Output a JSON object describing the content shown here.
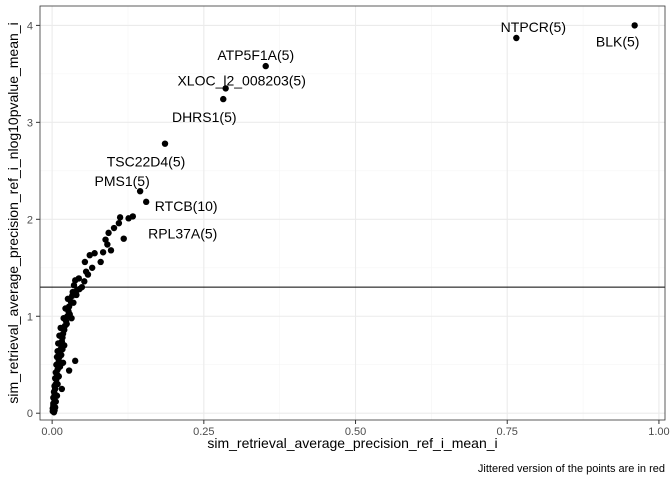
{
  "chart_data": {
    "type": "scatter",
    "xlabel": "sim_retrieval_average_precision_ref_i_mean_i",
    "ylabel": "sim_retrieval_average_precision_ref_i_nlog10pvalue_mean_i",
    "caption": "Jittered version of the points are in red",
    "xlim": [
      -0.02,
      1.01
    ],
    "ylim": [
      -0.07,
      4.2
    ],
    "x_ticks": [
      0.0,
      0.25,
      0.5,
      0.75,
      1.0
    ],
    "x_tick_labels": [
      "0.00",
      "0.25",
      "0.50",
      "0.75",
      "1.00"
    ],
    "y_ticks": [
      0,
      1,
      2,
      3,
      4
    ],
    "y_tick_labels": [
      "0",
      "1",
      "2",
      "3",
      "4"
    ],
    "grid": true,
    "hline": 1.3,
    "point_color": "#000000",
    "labeled_points": [
      {
        "x": 0.96,
        "y": 4.0,
        "label": "BLK(5)"
      },
      {
        "x": 0.765,
        "y": 3.87,
        "label": "NTPCR(5)"
      },
      {
        "x": 0.352,
        "y": 3.58,
        "label": "ATP5F1A(5)"
      },
      {
        "x": 0.286,
        "y": 3.35,
        "label": "XLOC_l2_008203(5)"
      },
      {
        "x": 0.282,
        "y": 3.24,
        "label": "DHRS1(5)"
      },
      {
        "x": 0.186,
        "y": 2.78,
        "label": "TSC22D4(5)"
      },
      {
        "x": 0.145,
        "y": 2.29,
        "label": "PMS1(5)"
      },
      {
        "x": 0.155,
        "y": 2.18,
        "label": "RTCB(10)"
      },
      {
        "x": 0.118,
        "y": 1.8,
        "label": "RPL37A(5)"
      }
    ],
    "points": [
      {
        "x": 0.133,
        "y": 2.03
      },
      {
        "x": 0.126,
        "y": 2.01
      },
      {
        "x": 0.112,
        "y": 2.02
      },
      {
        "x": 0.11,
        "y": 1.96
      },
      {
        "x": 0.102,
        "y": 1.91
      },
      {
        "x": 0.093,
        "y": 1.86
      },
      {
        "x": 0.088,
        "y": 1.79
      },
      {
        "x": 0.097,
        "y": 1.68
      },
      {
        "x": 0.091,
        "y": 1.74
      },
      {
        "x": 0.084,
        "y": 1.66
      },
      {
        "x": 0.08,
        "y": 1.56
      },
      {
        "x": 0.07,
        "y": 1.65
      },
      {
        "x": 0.062,
        "y": 1.63
      },
      {
        "x": 0.066,
        "y": 1.5
      },
      {
        "x": 0.054,
        "y": 1.56
      },
      {
        "x": 0.056,
        "y": 1.46
      },
      {
        "x": 0.059,
        "y": 1.43
      },
      {
        "x": 0.053,
        "y": 1.36
      },
      {
        "x": 0.044,
        "y": 1.39
      },
      {
        "x": 0.049,
        "y": 1.3
      },
      {
        "x": 0.041,
        "y": 1.27
      },
      {
        "x": 0.038,
        "y": 1.37
      },
      {
        "x": 0.036,
        "y": 1.32
      },
      {
        "x": 0.034,
        "y": 1.25
      },
      {
        "x": 0.033,
        "y": 1.21
      },
      {
        "x": 0.031,
        "y": 1.15
      },
      {
        "x": 0.028,
        "y": 1.1
      },
      {
        "x": 0.027,
        "y": 1.05
      },
      {
        "x": 0.025,
        "y": 1.0
      },
      {
        "x": 0.023,
        "y": 0.95
      },
      {
        "x": 0.021,
        "y": 0.9
      },
      {
        "x": 0.02,
        "y": 0.86
      },
      {
        "x": 0.018,
        "y": 0.82
      },
      {
        "x": 0.017,
        "y": 0.78
      },
      {
        "x": 0.016,
        "y": 0.74
      },
      {
        "x": 0.015,
        "y": 0.7
      },
      {
        "x": 0.014,
        "y": 0.66
      },
      {
        "x": 0.013,
        "y": 0.62
      },
      {
        "x": 0.012,
        "y": 0.58
      },
      {
        "x": 0.011,
        "y": 0.54
      },
      {
        "x": 0.01,
        "y": 0.5
      },
      {
        "x": 0.009,
        "y": 0.45
      },
      {
        "x": 0.008,
        "y": 0.4
      },
      {
        "x": 0.007,
        "y": 0.35
      },
      {
        "x": 0.006,
        "y": 0.3
      },
      {
        "x": 0.005,
        "y": 0.25
      },
      {
        "x": 0.004,
        "y": 0.2
      },
      {
        "x": 0.003,
        "y": 0.15
      },
      {
        "x": 0.002,
        "y": 0.1
      },
      {
        "x": 0.001,
        "y": 0.05
      },
      {
        "x": 0.001,
        "y": 0.02
      },
      {
        "x": 0.022,
        "y": 1.08
      },
      {
        "x": 0.026,
        "y": 1.18
      },
      {
        "x": 0.019,
        "y": 0.98
      },
      {
        "x": 0.014,
        "y": 0.88
      },
      {
        "x": 0.012,
        "y": 0.8
      },
      {
        "x": 0.01,
        "y": 0.72
      },
      {
        "x": 0.009,
        "y": 0.64
      },
      {
        "x": 0.008,
        "y": 0.58
      },
      {
        "x": 0.007,
        "y": 0.5
      },
      {
        "x": 0.006,
        "y": 0.42
      },
      {
        "x": 0.005,
        "y": 0.36
      },
      {
        "x": 0.004,
        "y": 0.28
      },
      {
        "x": 0.003,
        "y": 0.22
      },
      {
        "x": 0.002,
        "y": 0.16
      },
      {
        "x": 0.002,
        "y": 0.08
      },
      {
        "x": 0.028,
        "y": 0.44
      },
      {
        "x": 0.038,
        "y": 0.54
      },
      {
        "x": 0.018,
        "y": 0.52
      },
      {
        "x": 0.016,
        "y": 0.25
      },
      {
        "x": 0.013,
        "y": 0.48
      },
      {
        "x": 0.024,
        "y": 0.92
      },
      {
        "x": 0.029,
        "y": 1.02
      },
      {
        "x": 0.032,
        "y": 0.98
      },
      {
        "x": 0.035,
        "y": 1.14
      },
      {
        "x": 0.04,
        "y": 1.22
      },
      {
        "x": 0.045,
        "y": 1.28
      },
      {
        "x": 0.015,
        "y": 0.6
      },
      {
        "x": 0.011,
        "y": 0.38
      },
      {
        "x": 0.009,
        "y": 0.3
      },
      {
        "x": 0.008,
        "y": 0.18
      },
      {
        "x": 0.006,
        "y": 0.12
      },
      {
        "x": 0.005,
        "y": 0.06
      },
      {
        "x": 0.004,
        "y": 0.03
      },
      {
        "x": 0.003,
        "y": 0.01
      },
      {
        "x": 0.02,
        "y": 0.7
      },
      {
        "x": 0.017,
        "y": 0.66
      }
    ]
  }
}
